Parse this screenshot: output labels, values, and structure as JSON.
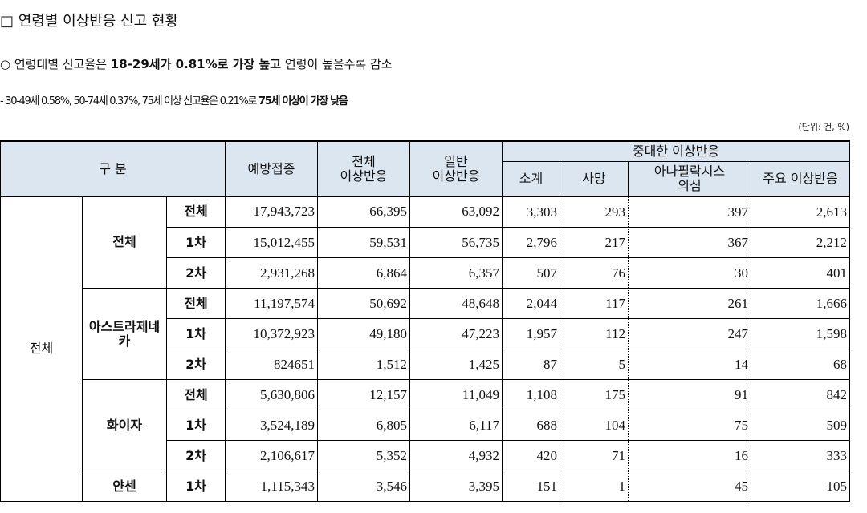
{
  "heading": "□ 연령별 이상반응 신고 현황",
  "summary": {
    "prefix": "○ 연령대별 신고율은 ",
    "bold": "18-29세가 0.81%로 가장 높고",
    "suffix": " 연령이 높을수록 감소"
  },
  "detail": {
    "prefix": "- 30-49세 0.58%, 50-74세 0.37%, 75세 이상 신고율은 0.21%로 ",
    "bold": "75세 이상이 가장 낮음"
  },
  "unit": "(단위: 건, %)",
  "table": {
    "header": {
      "category": "구 분",
      "vaccinated": "예방접종",
      "total": "전체\n이상반응",
      "general": "일반\n이상반응",
      "serious": "중대한 이상반응",
      "serious_cols": [
        "소계",
        "사망",
        "아나필락시스\n의심",
        "주요 이상반응"
      ]
    },
    "group": "전체",
    "vaccines": [
      {
        "name": "전체",
        "rows": [
          {
            "dose": "전체",
            "values": [
              "17,943,723",
              "66,395",
              "63,092",
              "3,303",
              "293",
              "397",
              "2,613"
            ]
          },
          {
            "dose": "1차",
            "values": [
              "15,012,455",
              "59,531",
              "56,735",
              "2,796",
              "217",
              "367",
              "2,212"
            ]
          },
          {
            "dose": "2차",
            "values": [
              "2,931,268",
              "6,864",
              "6,357",
              "507",
              "76",
              "30",
              "401"
            ]
          }
        ]
      },
      {
        "name": "아스트라제네\n카",
        "rows": [
          {
            "dose": "전체",
            "values": [
              "11,197,574",
              "50,692",
              "48,648",
              "2,044",
              "117",
              "261",
              "1,666"
            ]
          },
          {
            "dose": "1차",
            "values": [
              "10,372,923",
              "49,180",
              "47,223",
              "1,957",
              "112",
              "247",
              "1,598"
            ]
          },
          {
            "dose": "2차",
            "values": [
              "824651",
              "1,512",
              "1,425",
              "87",
              "5",
              "14",
              "68"
            ]
          }
        ]
      },
      {
        "name": "화이자",
        "rows": [
          {
            "dose": "전체",
            "values": [
              "5,630,806",
              "12,157",
              "11,049",
              "1,108",
              "175",
              "91",
              "842"
            ]
          },
          {
            "dose": "1차",
            "values": [
              "3,524,189",
              "6,805",
              "6,117",
              "688",
              "104",
              "75",
              "509"
            ]
          },
          {
            "dose": "2차",
            "values": [
              "2,106,617",
              "5,352",
              "4,932",
              "420",
              "71",
              "16",
              "333"
            ]
          }
        ]
      },
      {
        "name": "얀센",
        "rows": [
          {
            "dose": "1차",
            "values": [
              "1,115,343",
              "3,546",
              "3,395",
              "151",
              "1",
              "45",
              "105"
            ]
          }
        ]
      }
    ]
  }
}
